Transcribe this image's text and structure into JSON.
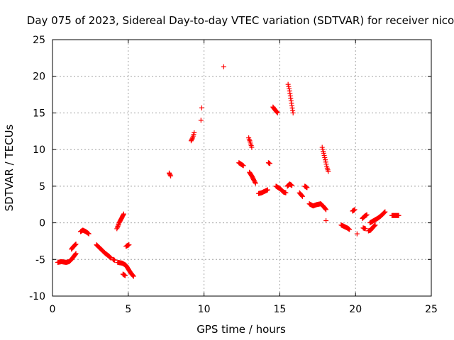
{
  "chart_data": {
    "type": "scatter",
    "title": "Day 075 of 2023, Sidereal Day-to-day VTEC variation (SDTVAR) for receiver nico",
    "xlabel": "GPS time / hours",
    "ylabel": "SDTVAR / TECUs",
    "xlim": [
      0,
      25
    ],
    "ylim": [
      -10,
      25
    ],
    "xticks": [
      0,
      5,
      10,
      15,
      20,
      25
    ],
    "yticks": [
      -10,
      -5,
      0,
      5,
      10,
      15,
      20,
      25
    ],
    "grid": true,
    "marker": "+",
    "color": "#ff0000",
    "series": [
      {
        "name": "SDTVAR",
        "segments": [
          [
            [
              0.35,
              -5.4
            ],
            [
              0.6,
              -5.3
            ],
            [
              0.9,
              -5.4
            ],
            [
              1.1,
              -5.3
            ],
            [
              1.25,
              -5.0
            ],
            [
              1.4,
              -4.6
            ],
            [
              1.55,
              -4.2
            ]
          ],
          [
            [
              1.25,
              -3.6
            ],
            [
              1.4,
              -3.2
            ],
            [
              1.55,
              -2.9
            ]
          ],
          [
            [
              1.85,
              -1.2
            ],
            [
              2.0,
              -1.0
            ],
            [
              2.2,
              -1.2
            ],
            [
              2.4,
              -1.5
            ]
          ],
          [
            [
              2.9,
              -3.0
            ],
            [
              3.1,
              -3.4
            ],
            [
              3.3,
              -3.8
            ],
            [
              3.5,
              -4.2
            ],
            [
              3.7,
              -4.5
            ],
            [
              3.85,
              -4.8
            ]
          ],
          [
            [
              4.0,
              -5.0
            ],
            [
              4.1,
              -5.1
            ]
          ],
          [
            [
              4.3,
              -5.4
            ],
            [
              4.6,
              -5.5
            ],
            [
              4.85,
              -5.8
            ],
            [
              5.0,
              -6.3
            ],
            [
              5.15,
              -6.8
            ],
            [
              5.35,
              -7.3
            ]
          ],
          [
            [
              4.65,
              -7.0
            ],
            [
              4.8,
              -7.2
            ]
          ],
          [
            [
              4.85,
              -3.2
            ],
            [
              5.05,
              -3.0
            ]
          ],
          [
            [
              4.25,
              -0.8
            ],
            [
              4.4,
              0.0
            ],
            [
              4.55,
              0.6
            ],
            [
              4.7,
              1.2
            ]
          ],
          [
            [
              7.7,
              6.8
            ],
            [
              7.8,
              6.4
            ]
          ],
          [
            [
              9.15,
              11.2
            ],
            [
              9.25,
              11.6
            ],
            [
              9.35,
              12.3
            ]
          ],
          [
            [
              9.8,
              14.0
            ]
          ],
          [
            [
              9.85,
              15.7
            ]
          ],
          [
            [
              11.3,
              21.3
            ]
          ],
          [
            [
              12.3,
              8.2
            ],
            [
              12.45,
              8.0
            ],
            [
              12.6,
              7.8
            ]
          ],
          [
            [
              12.95,
              11.6
            ],
            [
              13.05,
              11.0
            ],
            [
              13.15,
              10.3
            ]
          ],
          [
            [
              13.0,
              6.9
            ],
            [
              13.15,
              6.4
            ],
            [
              13.3,
              5.8
            ],
            [
              13.4,
              5.4
            ]
          ],
          [
            [
              13.6,
              4.0
            ],
            [
              13.8,
              4.1
            ],
            [
              14.0,
              4.3
            ],
            [
              14.2,
              4.5
            ]
          ],
          [
            [
              14.25,
              8.2
            ],
            [
              14.35,
              8.1
            ]
          ],
          [
            [
              14.55,
              15.8
            ],
            [
              14.7,
              15.4
            ],
            [
              14.85,
              15.0
            ]
          ],
          [
            [
              14.75,
              5.0
            ],
            [
              14.9,
              4.8
            ],
            [
              15.05,
              4.6
            ],
            [
              15.25,
              4.2
            ],
            [
              15.4,
              4.1
            ]
          ],
          [
            [
              15.55,
              18.9
            ],
            [
              15.65,
              18.0
            ],
            [
              15.72,
              17.0
            ],
            [
              15.8,
              16.0
            ],
            [
              15.88,
              15.0
            ]
          ],
          [
            [
              15.5,
              5.0
            ],
            [
              15.65,
              5.3
            ],
            [
              15.8,
              5.1
            ]
          ],
          [
            [
              16.3,
              4.1
            ],
            [
              16.5,
              3.6
            ]
          ],
          [
            [
              16.65,
              5.0
            ],
            [
              16.8,
              4.8
            ]
          ],
          [
            [
              16.95,
              2.6
            ],
            [
              17.2,
              2.3
            ],
            [
              17.45,
              2.5
            ],
            [
              17.7,
              2.6
            ],
            [
              17.9,
              2.2
            ],
            [
              18.05,
              1.8
            ]
          ],
          [
            [
              17.8,
              10.3
            ],
            [
              17.9,
              9.5
            ],
            [
              18.0,
              8.6
            ],
            [
              18.1,
              7.7
            ],
            [
              18.2,
              7.0
            ]
          ],
          [
            [
              18.05,
              0.3
            ]
          ],
          [
            [
              19.05,
              -0.3
            ],
            [
              19.25,
              -0.5
            ],
            [
              19.45,
              -0.7
            ],
            [
              19.6,
              -0.9
            ]
          ],
          [
            [
              19.8,
              1.6
            ],
            [
              19.95,
              1.8
            ]
          ],
          [
            [
              20.1,
              -1.5
            ]
          ],
          [
            [
              20.45,
              0.6
            ],
            [
              20.6,
              0.9
            ],
            [
              20.75,
              1.1
            ]
          ],
          [
            [
              20.5,
              -0.7
            ],
            [
              20.65,
              -0.8
            ]
          ],
          [
            [
              20.85,
              -1.1
            ],
            [
              21.0,
              -1.0
            ],
            [
              21.15,
              -0.6
            ],
            [
              21.3,
              -0.3
            ]
          ],
          [
            [
              20.95,
              0.0
            ],
            [
              21.2,
              0.3
            ],
            [
              21.45,
              0.6
            ],
            [
              21.65,
              0.9
            ],
            [
              21.85,
              1.3
            ],
            [
              21.95,
              1.5
            ]
          ],
          [
            [
              22.4,
              1.0
            ],
            [
              22.7,
              1.0
            ],
            [
              22.85,
              1.0
            ]
          ]
        ]
      }
    ]
  }
}
